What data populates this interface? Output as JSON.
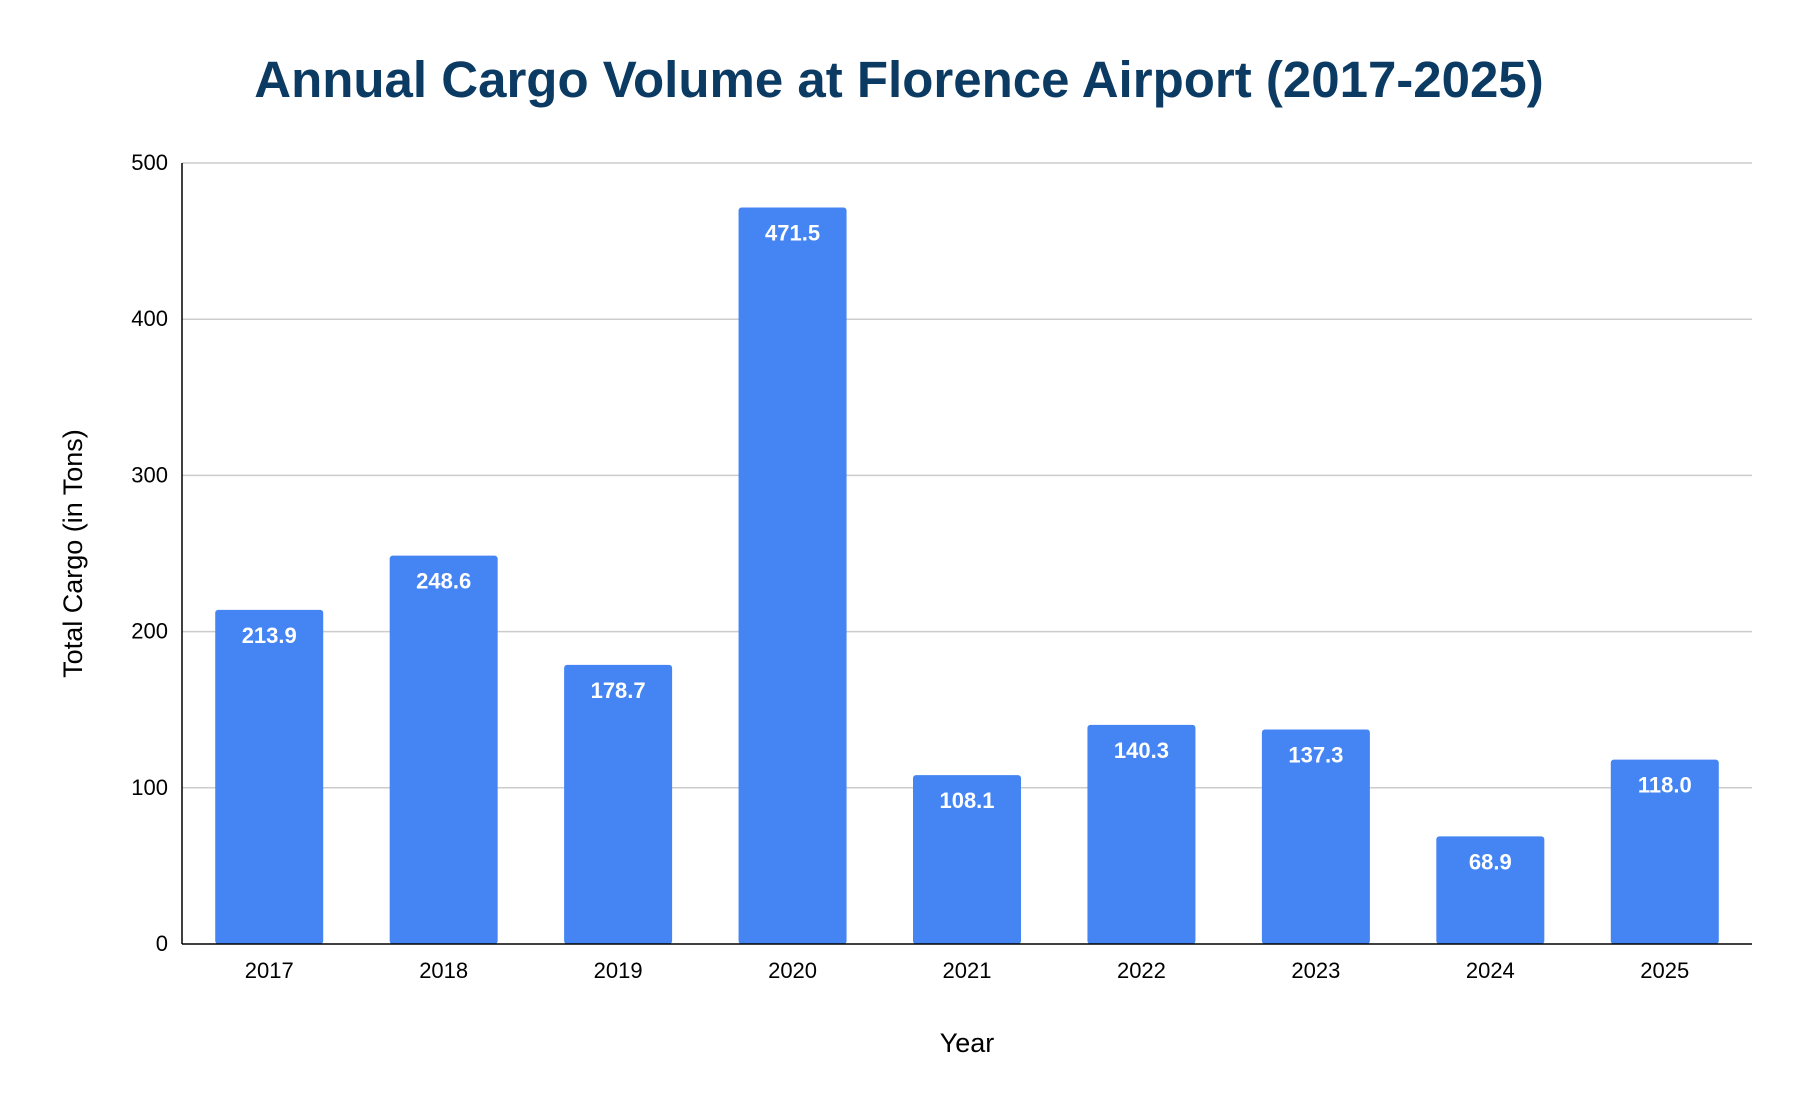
{
  "chart_data": {
    "type": "bar",
    "title": "Annual Cargo Volume at Florence Airport (2017-2025)",
    "xlabel": "Year",
    "ylabel": "Total Cargo (in Tons)",
    "categories": [
      "2017",
      "2018",
      "2019",
      "2020",
      "2021",
      "2022",
      "2023",
      "2024",
      "2025"
    ],
    "values": [
      213.9,
      248.6,
      178.7,
      471.5,
      108.1,
      140.3,
      137.3,
      68.9,
      118.0
    ],
    "data_labels": [
      "213.9",
      "248.6",
      "178.7",
      "471.5",
      "108.1",
      "140.3",
      "137.3",
      "68.9",
      "118.0"
    ],
    "ylim": [
      0,
      500
    ],
    "yticks": [
      0,
      100,
      200,
      300,
      400,
      500
    ],
    "ytick_labels": [
      "0",
      "100",
      "200",
      "300",
      "400",
      "500"
    ],
    "grid": true,
    "legend": "none",
    "colors": {
      "bar": "#4484f3",
      "title": "#0b3a63",
      "grid": "#cccccc",
      "axis": "#000000",
      "data_label": "#ffffff",
      "text": "#000000"
    }
  }
}
